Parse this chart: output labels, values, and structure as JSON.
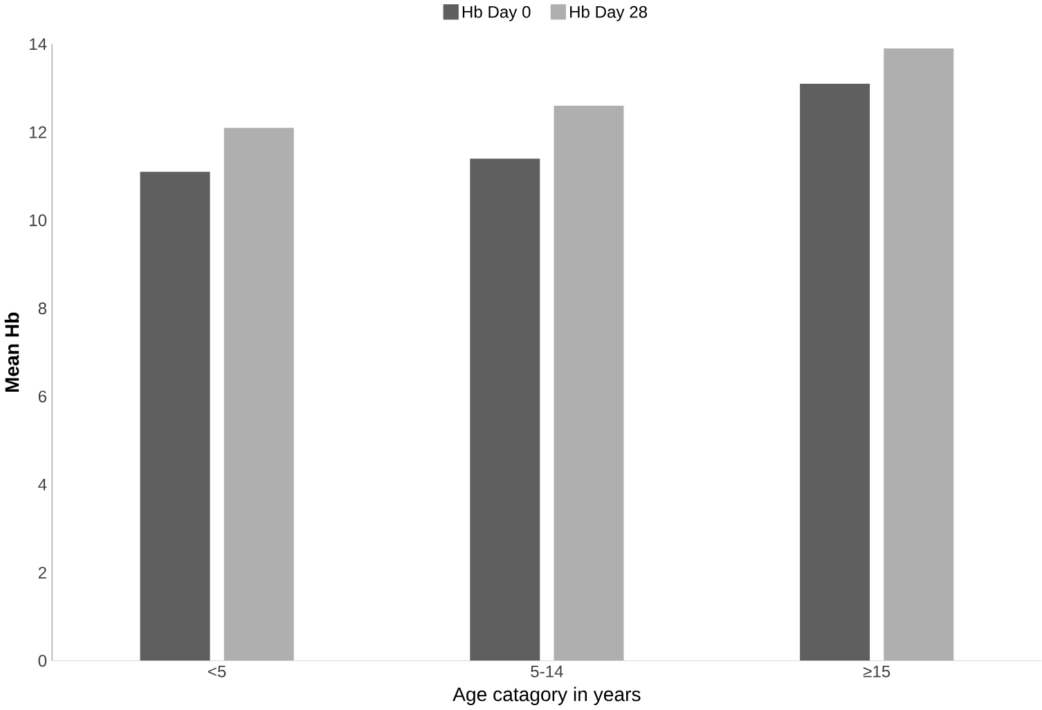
{
  "chart_data": {
    "type": "bar",
    "xlabel": "Age catagory in years",
    "ylabel": "Mean Hb",
    "categories": [
      "<5",
      "5-14",
      "≥15"
    ],
    "series": [
      {
        "name": "Hb Day 0",
        "color": "#5f5f5f",
        "values": [
          11.1,
          11.4,
          13.1
        ]
      },
      {
        "name": "Hb Day 28",
        "color": "#afafaf",
        "values": [
          12.1,
          12.6,
          13.9
        ]
      }
    ],
    "ylim": [
      0,
      14
    ],
    "yticks": [
      0,
      2,
      4,
      6,
      8,
      10,
      12,
      14
    ],
    "grid": false,
    "legend": "top"
  }
}
